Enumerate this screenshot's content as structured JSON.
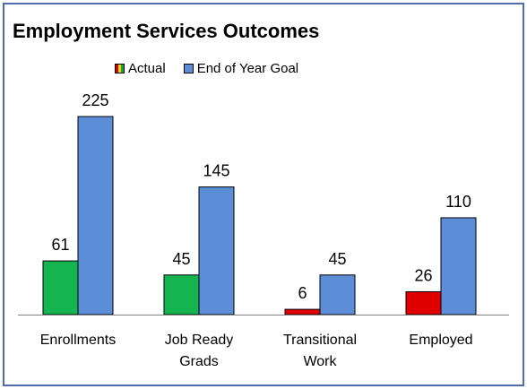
{
  "chart_data": {
    "type": "bar",
    "title": "Employment Services Outcomes",
    "categories": [
      [
        "Enrollments"
      ],
      [
        "Job Ready",
        "Grads"
      ],
      [
        "Transitional",
        "Work"
      ],
      [
        "Employed"
      ]
    ],
    "series": [
      {
        "name": "Actual",
        "values": [
          61,
          45,
          6,
          26
        ],
        "colors": [
          "#16b450",
          "#16b450",
          "#e00000",
          "#e00000"
        ]
      },
      {
        "name": "End of Year Goal",
        "values": [
          225,
          145,
          45,
          110
        ],
        "colors": [
          "#5b8ed6",
          "#5b8ed6",
          "#5b8ed6",
          "#5b8ed6"
        ]
      }
    ],
    "ylim": [
      0,
      225
    ],
    "grid": false,
    "legend_position": "top"
  },
  "colors": {
    "border": "#4f6dad",
    "axis": "#808080",
    "bar_stroke": "#000000"
  }
}
